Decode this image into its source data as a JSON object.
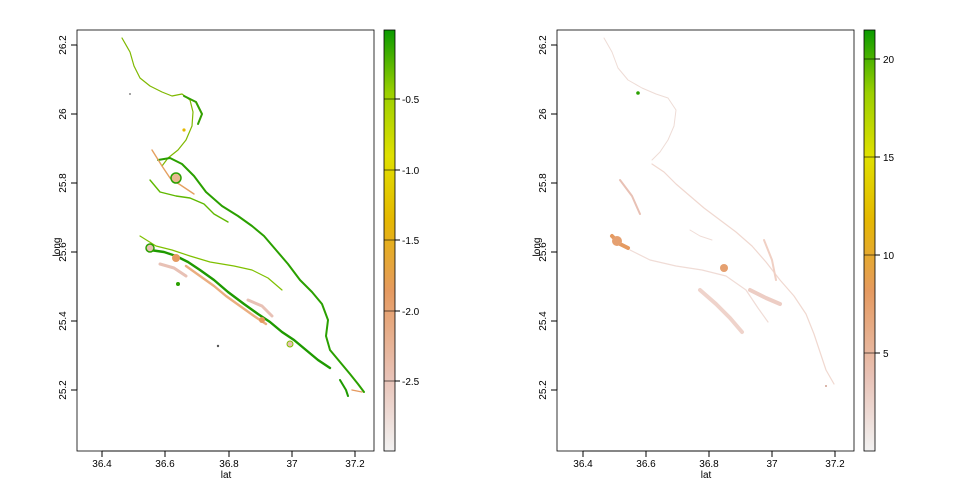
{
  "maps": [
    {
      "xlabel": "lat",
      "ylabel": "long",
      "x_ticks": [
        "36.4",
        "36.6",
        "36.8",
        "37",
        "37.2"
      ],
      "y_ticks": [
        "25.2",
        "25.4",
        "25.6",
        "25.8",
        "26",
        "26.2"
      ],
      "xlim": [
        36.3,
        37.27
      ],
      "ylim": [
        25.0,
        26.25
      ],
      "legend": {
        "ticks": [
          "-0.5",
          "-1.0",
          "-1.5",
          "-2.0",
          "-2.5"
        ],
        "range": [
          -3.0,
          0.0
        ],
        "colors": [
          "#f2f2f2",
          "#e8c1b5",
          "#e59a60",
          "#e5b800",
          "#e0e000",
          "#9bd000",
          "#0a9a00"
        ]
      }
    },
    {
      "xlabel": "lat",
      "ylabel": "long",
      "x_ticks": [
        "36.4",
        "36.6",
        "36.8",
        "37",
        "37.2"
      ],
      "y_ticks": [
        "25.2",
        "25.4",
        "25.6",
        "25.8",
        "26",
        "26.2"
      ],
      "xlim": [
        36.3,
        37.27
      ],
      "ylim": [
        25.0,
        26.25
      ],
      "legend": {
        "ticks": [
          "5",
          "10",
          "15",
          "20"
        ],
        "range": [
          0.0,
          21.5
        ],
        "colors": [
          "#f2f2f2",
          "#e8c1b5",
          "#e59a60",
          "#e5b800",
          "#e0e000",
          "#9bd000",
          "#0a9a00"
        ]
      }
    }
  ]
}
